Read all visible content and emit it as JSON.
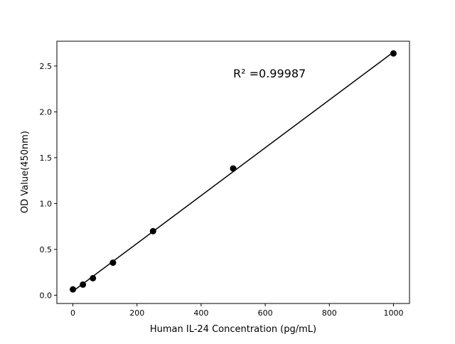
{
  "chart_data": {
    "type": "scatter",
    "title": "",
    "xlabel": "Human IL-24 Concentration (pg/mL)",
    "ylabel": "OD Value(450nm)",
    "xlim": [
      -50,
      1050
    ],
    "ylim": [
      -0.09,
      2.77
    ],
    "xticks": [
      0,
      200,
      400,
      600,
      800,
      1000
    ],
    "yticks": [
      0.0,
      0.5,
      1.0,
      1.5,
      2.0,
      2.5
    ],
    "xtick_labels": [
      "0",
      "200",
      "400",
      "600",
      "800",
      "1000"
    ],
    "ytick_labels": [
      "0.0",
      "0.5",
      "1.0",
      "1.5",
      "2.0",
      "2.5"
    ],
    "x": [
      0,
      31.25,
      62.5,
      125,
      250,
      500,
      1000
    ],
    "y": [
      0.064,
      0.116,
      0.186,
      0.355,
      0.699,
      1.382,
      2.637
    ],
    "fit_line": "linear",
    "annotation": "R² =0.99987",
    "grid": false,
    "color": "#000000"
  }
}
